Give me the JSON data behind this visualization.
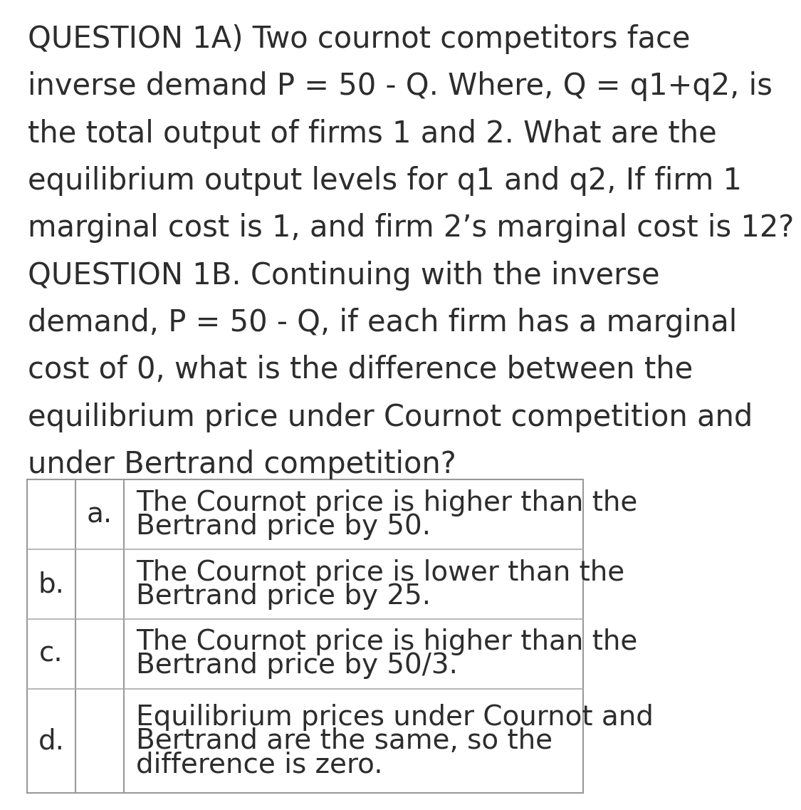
{
  "background_color": "#ffffff",
  "text_color": "#2d2d2d",
  "question_lines": [
    "QUESTION 1A) Two cournot competitors face",
    "inverse demand P = 50 - Q. Where, Q = q1+q2, is",
    "the total output of firms 1 and 2. What are the",
    "equilibrium output levels for q1 and q2, If firm 1",
    "marginal cost is 1, and firm 2’s marginal cost is 12?",
    "QUESTION 1B. Continuing with the inverse",
    "demand, P = 50 - Q, if each firm has a marginal",
    "cost of 0, what is the difference between the",
    "equilibrium price under Cournot competition and",
    "under Bertrand competition?"
  ],
  "table_rows": [
    {
      "col1_label": "",
      "col2_label": "a.",
      "text_lines": [
        "The Cournot price is higher than the",
        "Bertrand price by 50."
      ]
    },
    {
      "col1_label": "b.",
      "col2_label": "",
      "text_lines": [
        "The Cournot price is lower than the",
        "Bertrand price by 25."
      ]
    },
    {
      "col1_label": "c.",
      "col2_label": "",
      "text_lines": [
        "The Cournot price is higher than the",
        "Bertrand price by 50/3."
      ]
    },
    {
      "col1_label": "d.",
      "col2_label": "",
      "text_lines": [
        "Equilibrium prices under Cournot and",
        "Bertrand are the same, so the",
        "difference is zero."
      ]
    }
  ],
  "font_size_question": 30,
  "font_size_table": 28,
  "font_size_label": 28,
  "table_border_color": "#999999",
  "table_line_color": "#aaaaaa",
  "fig_width": 10.8,
  "fig_height": 14.51
}
